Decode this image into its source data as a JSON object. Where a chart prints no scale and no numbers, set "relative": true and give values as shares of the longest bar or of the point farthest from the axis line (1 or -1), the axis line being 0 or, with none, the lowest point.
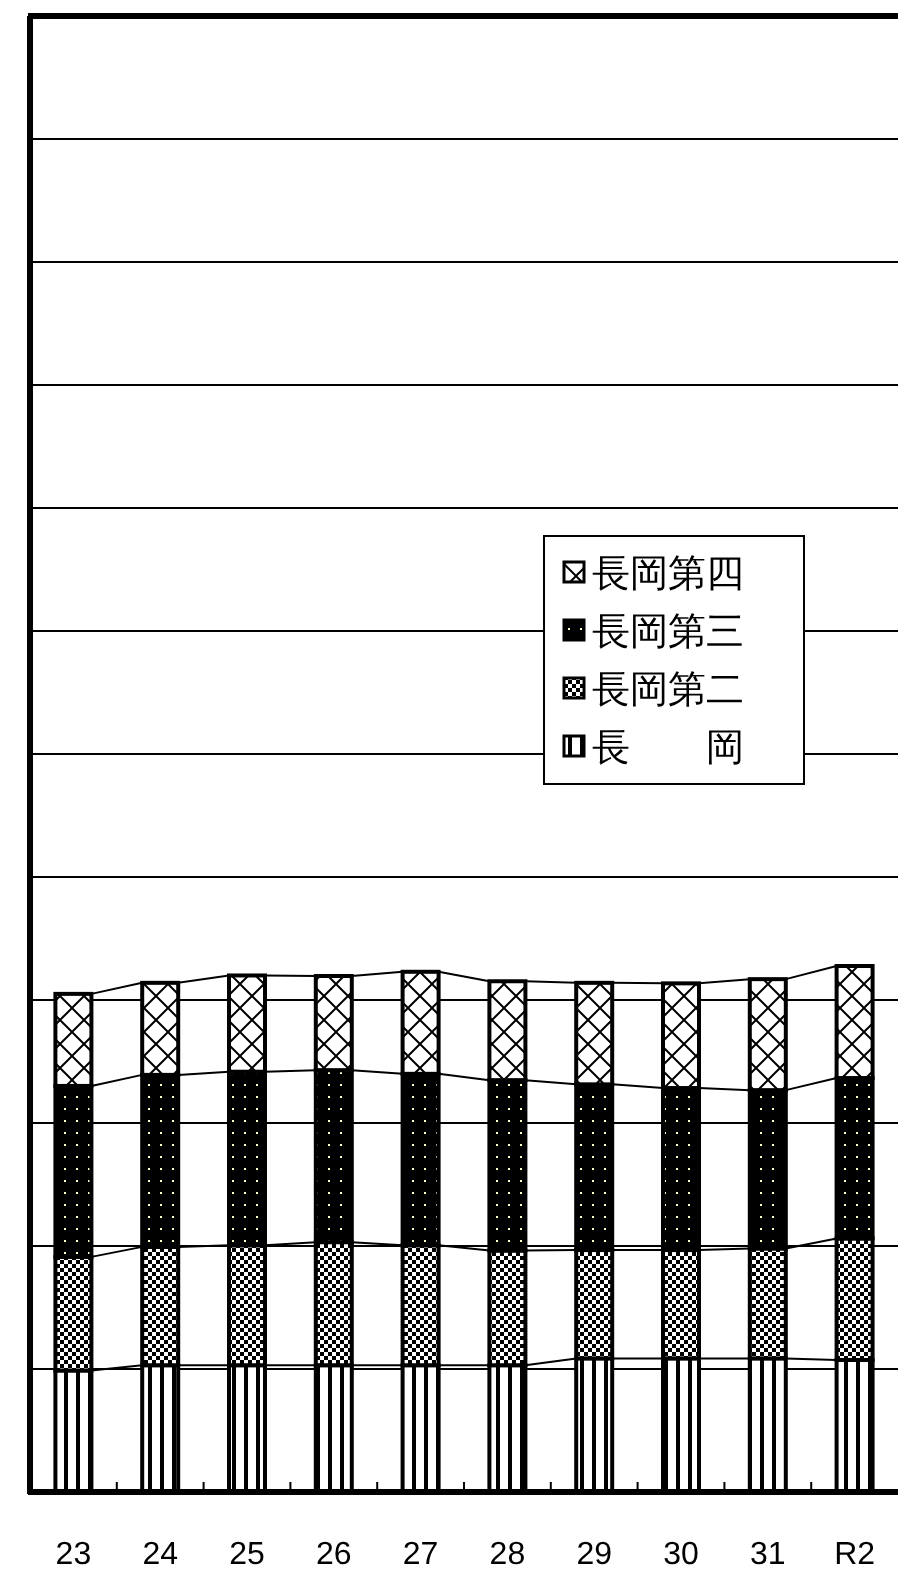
{
  "chart_data": {
    "type": "bar",
    "stacked": true,
    "relative": true,
    "grid": "y",
    "legend": "right",
    "categories": [
      "23",
      "24",
      "25",
      "26",
      "27",
      "28",
      "29",
      "30",
      "31",
      "R2"
    ],
    "series": [
      {
        "name": "長　　岡",
        "color": "#000000",
        "values": [
          0.231,
          0.241,
          0.241,
          0.241,
          0.241,
          0.241,
          0.254,
          0.254,
          0.254,
          0.251
        ]
      },
      {
        "name": "長岡第二",
        "color": "#000000",
        "values": [
          0.216,
          0.225,
          0.228,
          0.234,
          0.228,
          0.218,
          0.206,
          0.206,
          0.209,
          0.231
        ]
      },
      {
        "name": "長岡第三",
        "color": "#000000",
        "values": [
          0.325,
          0.327,
          0.33,
          0.327,
          0.326,
          0.324,
          0.315,
          0.308,
          0.301,
          0.305
        ]
      },
      {
        "name": "長岡第四",
        "color": "#000000",
        "values": [
          0.175,
          0.175,
          0.183,
          0.179,
          0.194,
          0.188,
          0.193,
          0.199,
          0.211,
          0.213
        ]
      }
    ]
  }
}
